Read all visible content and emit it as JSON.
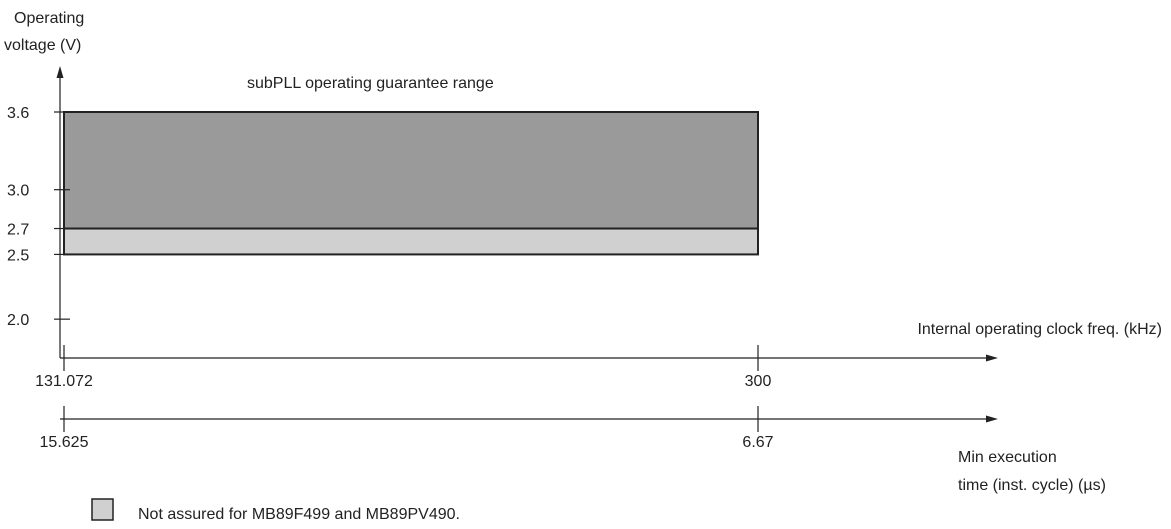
{
  "chart_data": {
    "type": "area",
    "title": "subPLL operating guarantee range",
    "ylabel": [
      "Operating",
      "voltage (V)"
    ],
    "xlabel": "Internal operating clock freq. (kHz)",
    "x2label": [
      "Min execution",
      "time (inst. cycle) (µs)"
    ],
    "y_ticks": [
      {
        "label": "3.6",
        "value": 3.6
      },
      {
        "label": "3.0",
        "value": 3.0
      },
      {
        "label": "2.7",
        "value": 2.7
      },
      {
        "label": "2.5",
        "value": 2.5
      },
      {
        "label": "2.0",
        "value": 2.0
      }
    ],
    "x_ticks": [
      {
        "label": "131.072",
        "value": 131.072
      },
      {
        "label": "300",
        "value": 300
      }
    ],
    "x2_ticks": [
      {
        "label": "15.625",
        "value": 15.625
      },
      {
        "label": "6.67",
        "value": 6.67
      }
    ],
    "regions": [
      {
        "x": [
          131.072,
          300
        ],
        "y": [
          2.7,
          3.6
        ],
        "color": "#9a9a9a"
      },
      {
        "x": [
          131.072,
          300
        ],
        "y": [
          2.5,
          2.7
        ],
        "color": "#d0d0d0"
      }
    ],
    "legend": {
      "label": "Not assured for MB89F499 and MB89PV490.",
      "color": "#d0d0d0"
    }
  }
}
